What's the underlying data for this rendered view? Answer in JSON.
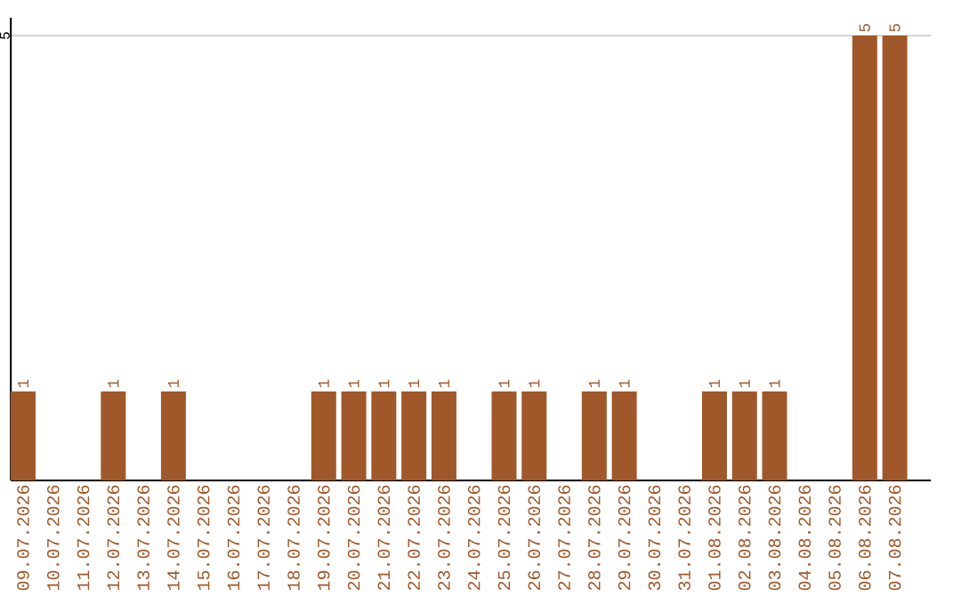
{
  "chart_data": {
    "type": "bar",
    "categories": [
      "09.07.2026",
      "10.07.2026",
      "11.07.2026",
      "12.07.2026",
      "13.07.2026",
      "14.07.2026",
      "15.07.2026",
      "16.07.2026",
      "17.07.2026",
      "18.07.2026",
      "19.07.2026",
      "20.07.2026",
      "21.07.2026",
      "22.07.2026",
      "23.07.2026",
      "24.07.2026",
      "25.07.2026",
      "26.07.2026",
      "27.07.2026",
      "28.07.2026",
      "29.07.2026",
      "30.07.2026",
      "31.07.2026",
      "01.08.2026",
      "02.08.2026",
      "03.08.2026",
      "04.08.2026",
      "05.08.2026",
      "06.08.2026",
      "07.08.2026"
    ],
    "values": [
      1,
      0,
      0,
      1,
      0,
      1,
      0,
      0,
      0,
      0,
      1,
      1,
      1,
      1,
      1,
      0,
      1,
      1,
      0,
      1,
      1,
      0,
      0,
      1,
      1,
      1,
      0,
      0,
      5,
      5
    ],
    "value_labels": [
      "1",
      null,
      null,
      "1",
      null,
      "1",
      null,
      null,
      null,
      null,
      "1",
      "1",
      "1",
      "1",
      "1",
      null,
      "1",
      "1",
      null,
      "1",
      "1",
      null,
      null,
      "1",
      "1",
      "1",
      null,
      null,
      "5",
      "5"
    ],
    "color": "#a0582a",
    "ylim": [
      0,
      5.2
    ],
    "yticks": [
      5
    ],
    "grid": "y"
  }
}
